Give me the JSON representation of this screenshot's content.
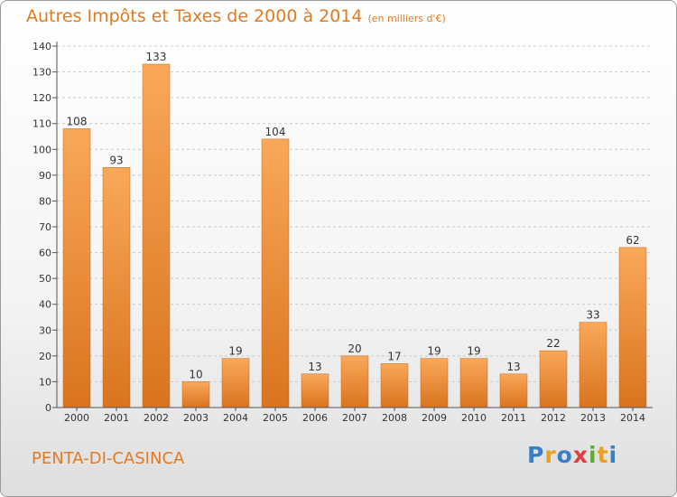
{
  "header": {
    "title": "Autres Impôts et Taxes de 2000 à 2014",
    "subtitle": "(en milliers d'€)"
  },
  "footer": {
    "commune": "PENTA-DI-CASINCA",
    "logo": {
      "letters": [
        "P",
        "r",
        "o",
        "x",
        "i",
        "t",
        "i"
      ],
      "colors": [
        "#3a7fc2",
        "#e8a020",
        "#3a7fc2",
        "#e23d3d",
        "#5cae3a",
        "#e8a020",
        "#3a7fc2"
      ]
    }
  },
  "chart_data": {
    "type": "bar",
    "title": "Autres Impôts et Taxes de 2000 à 2014",
    "subtitle": "(en milliers d'€)",
    "categories": [
      "2000",
      "2001",
      "2002",
      "2003",
      "2004",
      "2005",
      "2006",
      "2007",
      "2008",
      "2009",
      "2010",
      "2011",
      "2012",
      "2013",
      "2014"
    ],
    "values": [
      108,
      93,
      133,
      10,
      19,
      104,
      13,
      20,
      17,
      19,
      19,
      13,
      22,
      33,
      62
    ],
    "ylim": [
      0,
      140
    ],
    "yticks": [
      0,
      10,
      20,
      30,
      40,
      50,
      60,
      70,
      80,
      90,
      100,
      110,
      120,
      130,
      140
    ],
    "grid": "horizontal dashed",
    "bar_color": "#ee9440"
  }
}
